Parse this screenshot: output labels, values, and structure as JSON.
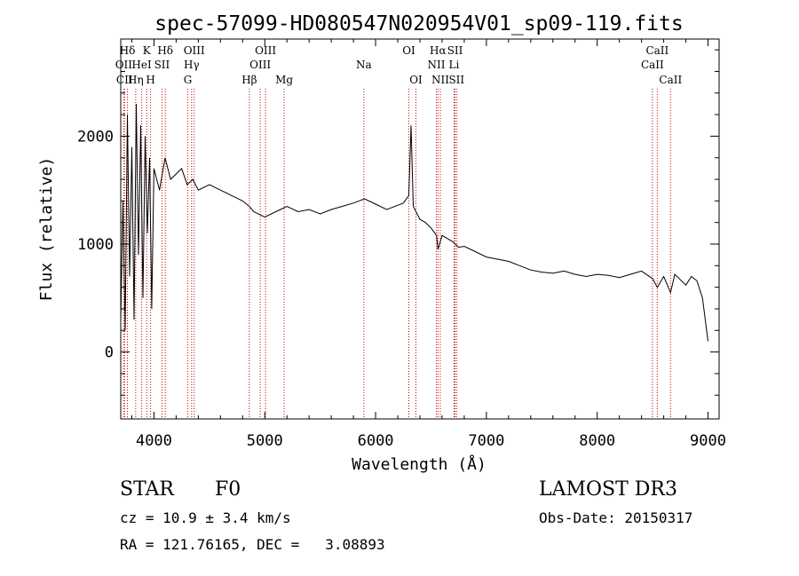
{
  "chart_data": {
    "type": "line",
    "title": "spec-57099-HD080547N020954V01_sp09-119.fits",
    "xlabel": "Wavelength (Å)",
    "ylabel": "Flux (relative)",
    "xlim": [
      3700,
      9100
    ],
    "ylim": [
      -620,
      2900
    ],
    "xticks": [
      4000,
      5000,
      6000,
      7000,
      8000,
      9000
    ],
    "xtick_labels": [
      "4000",
      "5000",
      "6000",
      "7000",
      "8000",
      "9000"
    ],
    "yticks": [
      0,
      1000,
      2000
    ],
    "ytick_labels": [
      "0",
      "1000",
      "2000"
    ],
    "series": [
      {
        "name": "flux",
        "x": [
          3700,
          3720,
          3740,
          3760,
          3780,
          3800,
          3820,
          3840,
          3860,
          3880,
          3900,
          3920,
          3940,
          3960,
          3980,
          4000,
          4050,
          4100,
          4150,
          4200,
          4250,
          4300,
          4350,
          4400,
          4500,
          4600,
          4700,
          4800,
          4860,
          4900,
          5000,
          5100,
          5200,
          5300,
          5400,
          5500,
          5600,
          5700,
          5800,
          5900,
          6000,
          6100,
          6200,
          6250,
          6300,
          6320,
          6340,
          6400,
          6450,
          6500,
          6550,
          6563,
          6600,
          6650,
          6700,
          6750,
          6800,
          6900,
          7000,
          7100,
          7200,
          7300,
          7400,
          7500,
          7600,
          7700,
          7800,
          7900,
          8000,
          8100,
          8200,
          8300,
          8400,
          8500,
          8542,
          8600,
          8662,
          8700,
          8800,
          8850,
          8900,
          8950,
          9000
        ],
        "y": [
          300,
          1400,
          200,
          2200,
          700,
          1900,
          300,
          2300,
          900,
          2100,
          500,
          2000,
          1100,
          1800,
          400,
          1700,
          1500,
          1800,
          1600,
          1650,
          1700,
          1550,
          1600,
          1500,
          1550,
          1500,
          1450,
          1400,
          1350,
          1300,
          1250,
          1300,
          1350,
          1300,
          1320,
          1280,
          1320,
          1350,
          1380,
          1420,
          1370,
          1320,
          1360,
          1380,
          1450,
          2100,
          1350,
          1230,
          1200,
          1150,
          1080,
          950,
          1080,
          1050,
          1020,
          970,
          980,
          930,
          880,
          860,
          840,
          800,
          760,
          740,
          730,
          750,
          720,
          700,
          720,
          710,
          690,
          720,
          750,
          680,
          600,
          700,
          550,
          720,
          620,
          700,
          660,
          500,
          100
        ]
      }
    ],
    "annotations": [
      {
        "label": "Hδ",
        "wavelength": 3760,
        "row": 1
      },
      {
        "label": "OII",
        "wavelength": 3727,
        "row": 2
      },
      {
        "label": "CII",
        "wavelength": 3734,
        "row": 3
      },
      {
        "label": "Hη",
        "wavelength": 3835,
        "row": 3
      },
      {
        "label": "HeI",
        "wavelength": 3889,
        "row": 2
      },
      {
        "label": "K",
        "wavelength": 3934,
        "row": 1
      },
      {
        "label": "H",
        "wavelength": 3969,
        "row": 3
      },
      {
        "label": "SII",
        "wavelength": 4072,
        "row": 2
      },
      {
        "label": "Hδ",
        "wavelength": 4102,
        "row": 1
      },
      {
        "label": "OIII",
        "wavelength": 4363,
        "row": 1
      },
      {
        "label": "Hγ",
        "wavelength": 4340,
        "row": 2
      },
      {
        "label": "G",
        "wavelength": 4305,
        "row": 3
      },
      {
        "label": "Hβ",
        "wavelength": 4861,
        "row": 3
      },
      {
        "label": "OIII",
        "wavelength": 5007,
        "row": 1
      },
      {
        "label": "OIII",
        "wavelength": 4959,
        "row": 2
      },
      {
        "label": "Mg",
        "wavelength": 5175,
        "row": 3
      },
      {
        "label": "Na",
        "wavelength": 5894,
        "row": 2
      },
      {
        "label": "OI",
        "wavelength": 6300,
        "row": 1
      },
      {
        "label": "OI",
        "wavelength": 6364,
        "row": 3
      },
      {
        "label": "Hα",
        "wavelength": 6563,
        "row": 1
      },
      {
        "label": "NII",
        "wavelength": 6548,
        "row": 2
      },
      {
        "label": "NII",
        "wavelength": 6584,
        "row": 3
      },
      {
        "label": "SII",
        "wavelength": 6717,
        "row": 1
      },
      {
        "label": "Li",
        "wavelength": 6708,
        "row": 2
      },
      {
        "label": "SII",
        "wavelength": 6731,
        "row": 3
      },
      {
        "label": "CaII",
        "wavelength": 8542,
        "row": 1
      },
      {
        "label": "CaII",
        "wavelength": 8498,
        "row": 2
      },
      {
        "label": "CaII",
        "wavelength": 8662,
        "row": 3
      }
    ]
  },
  "info": {
    "object_class": "STAR",
    "subclass": "F0",
    "survey": "LAMOST DR3",
    "redshift_text": "cz = 10.9 ± 3.4 km/s",
    "obs_date_text": "Obs-Date: 20150317",
    "coords_text": "RA = 121.76165, DEC =   3.08893"
  }
}
